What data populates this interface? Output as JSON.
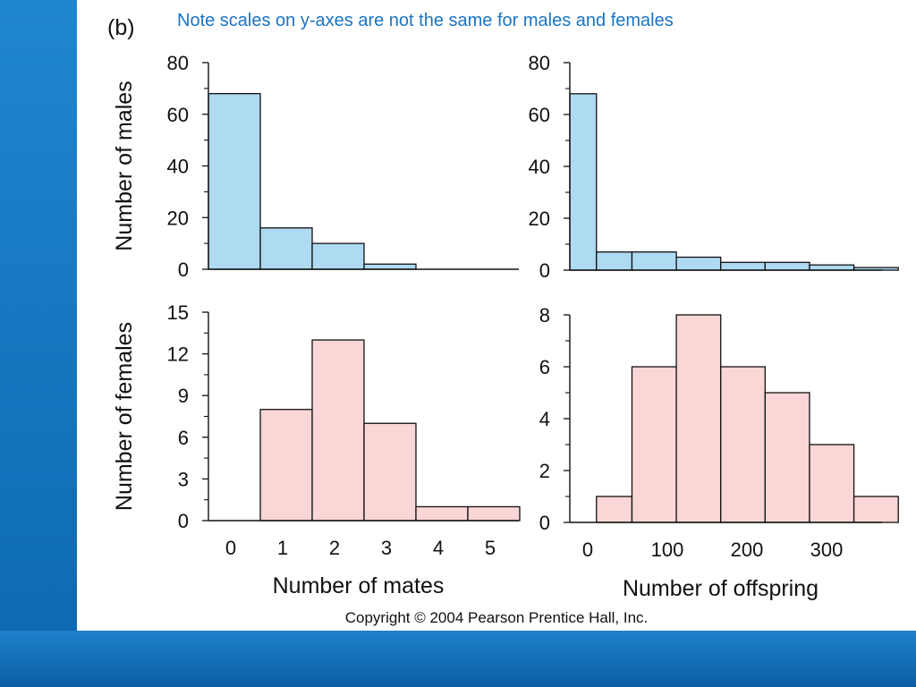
{
  "panel_label": "(b)",
  "note": "Note scales on y-axes are not the same for males and females",
  "copyright": "Copyright © 2004 Pearson Prentice Hall, Inc.",
  "colors": {
    "male_fill": "#aedaf2",
    "female_fill": "#fbd6d6",
    "stroke": "#111111",
    "note": "#1a74c4",
    "background": "#1a7ec8"
  },
  "chart_data": [
    {
      "type": "bar",
      "id": "males-mates",
      "ylabel": "Number of males",
      "xlabel": "",
      "ylim": [
        0,
        80
      ],
      "yticks": [
        0,
        20,
        40,
        60,
        80
      ],
      "categories": [
        "0",
        "1",
        "2",
        "3",
        "4",
        "5"
      ],
      "values": [
        68,
        16,
        10,
        2,
        0,
        0
      ]
    },
    {
      "type": "bar",
      "id": "males-offspring",
      "ylabel": "",
      "xlabel": "",
      "ylim": [
        0,
        80
      ],
      "yticks": [
        0,
        20,
        40,
        60,
        80
      ],
      "bins": [
        [
          0,
          30
        ],
        [
          30,
          70
        ],
        [
          70,
          120
        ],
        [
          120,
          170
        ],
        [
          170,
          220
        ],
        [
          220,
          270
        ],
        [
          270,
          320
        ],
        [
          320,
          370
        ]
      ],
      "values": [
        68,
        7,
        7,
        5,
        3,
        3,
        2,
        1
      ]
    },
    {
      "type": "bar",
      "id": "females-mates",
      "ylabel": "Number of females",
      "xlabel": "Number of mates",
      "ylim": [
        0,
        15
      ],
      "yticks": [
        0,
        3,
        6,
        9,
        12,
        15
      ],
      "categories": [
        "0",
        "1",
        "2",
        "3",
        "4",
        "5"
      ],
      "xticklabels": [
        "0",
        "1",
        "2",
        "3",
        "4",
        "5"
      ],
      "values": [
        0,
        8,
        13,
        7,
        1,
        1
      ]
    },
    {
      "type": "bar",
      "id": "females-offspring",
      "ylabel": "",
      "xlabel": "Number of offspring",
      "ylim": [
        0,
        8
      ],
      "yticks": [
        0,
        2,
        4,
        6,
        8
      ],
      "xticks": [
        0,
        100,
        200,
        300
      ],
      "bins": [
        [
          0,
          30
        ],
        [
          30,
          70
        ],
        [
          70,
          120
        ],
        [
          120,
          170
        ],
        [
          170,
          220
        ],
        [
          220,
          270
        ],
        [
          270,
          320
        ],
        [
          320,
          370
        ]
      ],
      "values": [
        0,
        1,
        6,
        8,
        6,
        5,
        3,
        1
      ]
    }
  ]
}
